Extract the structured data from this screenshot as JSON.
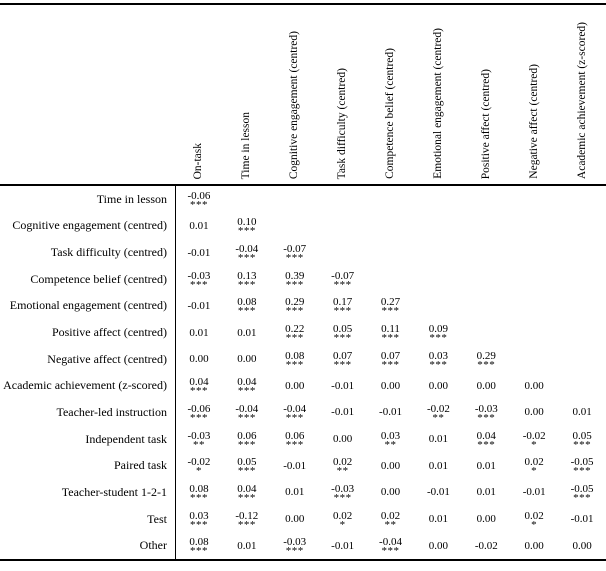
{
  "table": {
    "columns": [
      "On-task",
      "Time in lesson",
      "Cognitive engagement (centred)",
      "Task difficulty (centred)",
      "Competence belief (centred)",
      "Emotional engagement (centred)",
      "Positive affect (centred)",
      "Negative affect (centred)",
      "Academic achievement (z-scored)"
    ],
    "rows": [
      {
        "label": "Time in lesson",
        "cells": [
          {
            "v": "-0.06",
            "s": "***"
          },
          null,
          null,
          null,
          null,
          null,
          null,
          null,
          null
        ]
      },
      {
        "label": "Cognitive engagement (centred)",
        "cells": [
          {
            "v": "0.01"
          },
          {
            "v": "0.10",
            "s": "***"
          },
          null,
          null,
          null,
          null,
          null,
          null,
          null
        ]
      },
      {
        "label": "Task difficulty (centred)",
        "cells": [
          {
            "v": "-0.01"
          },
          {
            "v": "-0.04",
            "s": "***"
          },
          {
            "v": "-0.07",
            "s": "***"
          },
          null,
          null,
          null,
          null,
          null,
          null
        ]
      },
      {
        "label": "Competence belief (centred)",
        "cells": [
          {
            "v": "-0.03",
            "s": "***"
          },
          {
            "v": "0.13",
            "s": "***"
          },
          {
            "v": "0.39",
            "s": "***"
          },
          {
            "v": "-0.07",
            "s": "***"
          },
          null,
          null,
          null,
          null,
          null
        ]
      },
      {
        "label": "Emotional engagement (centred)",
        "cells": [
          {
            "v": "-0.01"
          },
          {
            "v": "0.08",
            "s": "***"
          },
          {
            "v": "0.29",
            "s": "***"
          },
          {
            "v": "0.17",
            "s": "***"
          },
          {
            "v": "0.27",
            "s": "***"
          },
          null,
          null,
          null,
          null
        ]
      },
      {
        "label": "Positive affect (centred)",
        "cells": [
          {
            "v": "0.01"
          },
          {
            "v": "0.01"
          },
          {
            "v": "0.22",
            "s": "***"
          },
          {
            "v": "0.05",
            "s": "***"
          },
          {
            "v": "0.11",
            "s": "***"
          },
          {
            "v": "0.09",
            "s": "***"
          },
          null,
          null,
          null
        ]
      },
      {
        "label": "Negative affect (centred)",
        "cells": [
          {
            "v": "0.00"
          },
          {
            "v": "0.00"
          },
          {
            "v": "0.08",
            "s": "***"
          },
          {
            "v": "0.07",
            "s": "***"
          },
          {
            "v": "0.07",
            "s": "***"
          },
          {
            "v": "0.03",
            "s": "***"
          },
          {
            "v": "0.29",
            "s": "***"
          },
          null,
          null
        ]
      },
      {
        "label": "Academic achievement (z-scored)",
        "cells": [
          {
            "v": "0.04",
            "s": "***"
          },
          {
            "v": "0.04",
            "s": "***"
          },
          {
            "v": "0.00"
          },
          {
            "v": "-0.01"
          },
          {
            "v": "0.00"
          },
          {
            "v": "0.00"
          },
          {
            "v": "0.00"
          },
          {
            "v": "0.00"
          },
          null
        ]
      },
      {
        "label": "Teacher-led instruction",
        "cells": [
          {
            "v": "-0.06",
            "s": "***"
          },
          {
            "v": "-0.04",
            "s": "***"
          },
          {
            "v": "-0.04",
            "s": "***"
          },
          {
            "v": "-0.01"
          },
          {
            "v": "-0.01"
          },
          {
            "v": "-0.02",
            "s": "**"
          },
          {
            "v": "-0.03",
            "s": "***"
          },
          {
            "v": "0.00"
          },
          {
            "v": "0.01"
          }
        ]
      },
      {
        "label": "Independent task",
        "cells": [
          {
            "v": "-0.03",
            "s": "**"
          },
          {
            "v": "0.06",
            "s": "***"
          },
          {
            "v": "0.06",
            "s": "***"
          },
          {
            "v": "0.00"
          },
          {
            "v": "0.03",
            "s": "**"
          },
          {
            "v": "0.01"
          },
          {
            "v": "0.04",
            "s": "***"
          },
          {
            "v": "-0.02",
            "s": "*"
          },
          {
            "v": "0.05",
            "s": "***"
          }
        ]
      },
      {
        "label": "Paired task",
        "cells": [
          {
            "v": "-0.02",
            "s": "*"
          },
          {
            "v": "0.05",
            "s": "***"
          },
          {
            "v": "-0.01"
          },
          {
            "v": "0.02",
            "s": "**"
          },
          {
            "v": "0.00"
          },
          {
            "v": "0.01"
          },
          {
            "v": "0.01"
          },
          {
            "v": "0.02",
            "s": "*"
          },
          {
            "v": "-0.05",
            "s": "***"
          }
        ]
      },
      {
        "label": "Teacher-student 1-2-1",
        "cells": [
          {
            "v": "0.08",
            "s": "***"
          },
          {
            "v": "0.04",
            "s": "***"
          },
          {
            "v": "0.01"
          },
          {
            "v": "-0.03",
            "s": "***"
          },
          {
            "v": "0.00"
          },
          {
            "v": "-0.01"
          },
          {
            "v": "0.01"
          },
          {
            "v": "-0.01"
          },
          {
            "v": "-0.05",
            "s": "***"
          }
        ]
      },
      {
        "label": "Test",
        "cells": [
          {
            "v": "0.03",
            "s": "***"
          },
          {
            "v": "-0.12",
            "s": "***"
          },
          {
            "v": "0.00"
          },
          {
            "v": "0.02",
            "s": "*"
          },
          {
            "v": "0.02",
            "s": "**"
          },
          {
            "v": "0.01"
          },
          {
            "v": "0.00"
          },
          {
            "v": "0.02",
            "s": "*"
          },
          {
            "v": "-0.01"
          }
        ]
      },
      {
        "label": "Other",
        "cells": [
          {
            "v": "0.08",
            "s": "***"
          },
          {
            "v": "0.01"
          },
          {
            "v": "-0.03",
            "s": "***"
          },
          {
            "v": "-0.01"
          },
          {
            "v": "-0.04",
            "s": "***"
          },
          {
            "v": "0.00"
          },
          {
            "v": "-0.02"
          },
          {
            "v": "0.00"
          },
          {
            "v": "0.00"
          }
        ]
      }
    ]
  }
}
